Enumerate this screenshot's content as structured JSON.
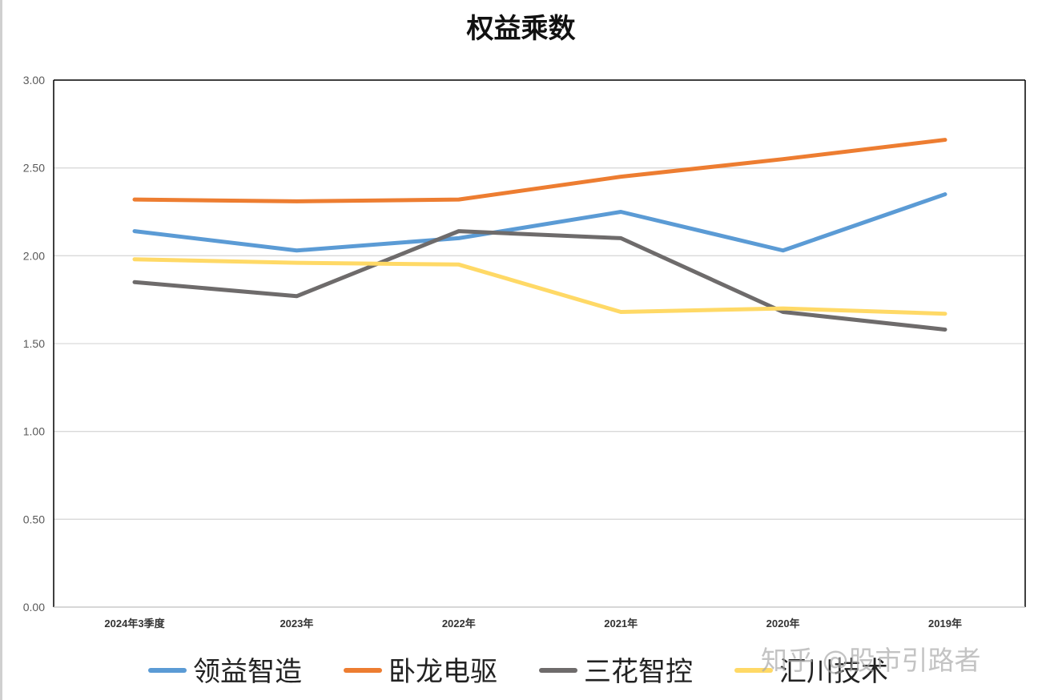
{
  "chart_data": {
    "type": "line",
    "title": "权益乘数",
    "categories": [
      "2024年3季度",
      "2023年",
      "2022年",
      "2021年",
      "2020年",
      "2019年"
    ],
    "ylim": [
      0,
      3.0
    ],
    "yticks": [
      "0.00",
      "0.50",
      "1.00",
      "1.50",
      "2.00",
      "2.50",
      "3.00"
    ],
    "grid": true,
    "legend_position": "bottom",
    "series": [
      {
        "name": "领益智造",
        "color": "#5b9bd5",
        "values": [
          2.14,
          2.03,
          2.1,
          2.25,
          2.03,
          2.35
        ]
      },
      {
        "name": "卧龙电驱",
        "color": "#ed7d31",
        "values": [
          2.32,
          2.31,
          2.32,
          2.45,
          2.55,
          2.66
        ]
      },
      {
        "name": "三花智控",
        "color": "#6e6b6b",
        "values": [
          1.85,
          1.77,
          2.14,
          2.1,
          1.68,
          1.58
        ]
      },
      {
        "name": "汇川技术",
        "color": "#ffd966",
        "values": [
          1.98,
          1.96,
          1.95,
          1.68,
          1.7,
          1.67
        ]
      }
    ]
  },
  "watermark": "知乎 @股市引路者"
}
